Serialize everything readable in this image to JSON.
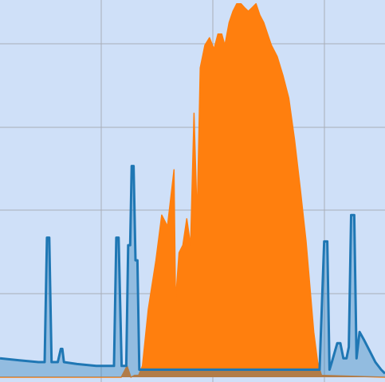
{
  "chart_data": {
    "type": "area",
    "title": "",
    "xlabel": "",
    "ylabel": "",
    "xlim": [
      0,
      100
    ],
    "ylim": [
      0,
      100
    ],
    "grid": true,
    "legend": "none",
    "colors": {
      "background": "#cfe0f8",
      "grid": "#a8aeb8",
      "series_blue": "#1f77b4",
      "series_orange": "#ff7f0e"
    },
    "series": [
      {
        "color": "#1f77b4",
        "x": [
          0,
          5,
          10,
          11.6,
          12.2,
          12.8,
          13.4,
          15,
          15.8,
          16.2,
          16.6,
          20,
          25,
          26.8,
          29.6,
          30.2,
          30.8,
          31.6,
          32.8,
          33.3,
          33.8,
          34.2,
          34.7,
          35.2,
          35.7,
          36.2,
          83,
          84.2,
          85,
          85.6,
          86.2,
          87.6,
          88.4,
          89.2,
          90,
          90.6,
          91.2,
          92,
          92.6,
          93.4,
          94.5,
          96,
          97.5,
          99,
          100
        ],
        "y": [
          5,
          4.5,
          4,
          4,
          37,
          37,
          4,
          4,
          7.5,
          7.5,
          4,
          3.5,
          3,
          3,
          3,
          37,
          37,
          3,
          3,
          35,
          35,
          56,
          56,
          31,
          31,
          2,
          2,
          36,
          36,
          2,
          4,
          9,
          9,
          5,
          5,
          8,
          43,
          43,
          5,
          12,
          10,
          7,
          4,
          2,
          1
        ]
      },
      {
        "color": "#ff7f0e",
        "x": [
          0,
          31.5,
          33,
          34,
          35,
          36,
          37,
          38.5,
          40.5,
          42,
          43.5,
          45.2,
          45.6,
          46.5,
          47.5,
          48.5,
          49.5,
          50.4,
          51.2,
          52,
          53.2,
          54.4,
          55.6,
          56.6,
          57.6,
          58.4,
          59.5,
          60.5,
          61.5,
          62.6,
          63.5,
          64.5,
          65.5,
          66.5,
          67.5,
          68.5,
          69.5,
          70.5,
          72,
          73.5,
          75,
          76.5,
          78,
          79.5,
          80.5,
          81.5,
          82.5,
          83.5,
          100
        ],
        "y": [
          0,
          0,
          3,
          0,
          0.5,
          0.5,
          3,
          18,
          31,
          43,
          40,
          55,
          20,
          33,
          35,
          42,
          35,
          70,
          42,
          82,
          88,
          90,
          87,
          91,
          91,
          88,
          94,
          97,
          99,
          99,
          98,
          97,
          98,
          99,
          96,
          94,
          91,
          88,
          85,
          80,
          74,
          63,
          50,
          36,
          24,
          12,
          4,
          0.5,
          0
        ]
      }
    ]
  }
}
